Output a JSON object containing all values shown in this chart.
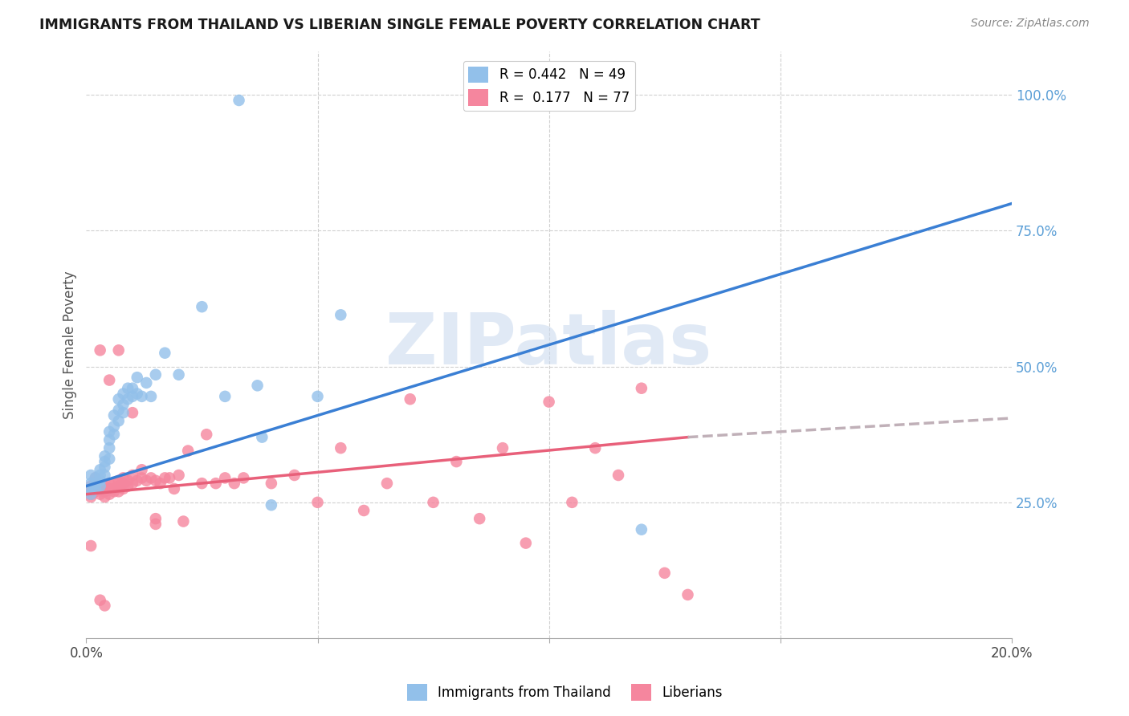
{
  "title": "IMMIGRANTS FROM THAILAND VS LIBERIAN SINGLE FEMALE POVERTY CORRELATION CHART",
  "source": "Source: ZipAtlas.com",
  "ylabel": "Single Female Poverty",
  "ytick_labels": [
    "25.0%",
    "50.0%",
    "75.0%",
    "100.0%"
  ],
  "ytick_positions": [
    0.25,
    0.5,
    0.75,
    1.0
  ],
  "xlim": [
    0.0,
    0.2
  ],
  "ylim": [
    0.0,
    1.08
  ],
  "legend_entry1": "R = 0.442   N = 49",
  "legend_entry2": "R =  0.177   N = 77",
  "color_thailand": "#92c0ea",
  "color_liberian": "#f5869e",
  "color_line_thailand": "#3a7fd4",
  "color_line_liberian": "#e8607a",
  "color_line_dashed": "#c0b0b8",
  "watermark_text": "ZIPatlas",
  "legend1_label": "R = 0.442   N = 49",
  "legend2_label": "R =  0.177   N = 77",
  "bottom_legend1": "Immigrants from Thailand",
  "bottom_legend2": "Liberians",
  "thailand_line_x0": 0.0,
  "thailand_line_y0": 0.28,
  "thailand_line_x1": 0.2,
  "thailand_line_y1": 0.8,
  "liberian_line_x0": 0.0,
  "liberian_line_y0": 0.265,
  "liberian_line_x1": 0.13,
  "liberian_line_y1": 0.37,
  "liberian_line_dash_x0": 0.13,
  "liberian_line_dash_y0": 0.37,
  "liberian_line_dash_x1": 0.2,
  "liberian_line_dash_y1": 0.405,
  "thailand_scatter_x": [
    0.001,
    0.001,
    0.001,
    0.001,
    0.002,
    0.002,
    0.002,
    0.003,
    0.003,
    0.003,
    0.003,
    0.004,
    0.004,
    0.004,
    0.004,
    0.005,
    0.005,
    0.005,
    0.005,
    0.006,
    0.006,
    0.006,
    0.007,
    0.007,
    0.007,
    0.008,
    0.008,
    0.008,
    0.009,
    0.009,
    0.01,
    0.01,
    0.011,
    0.011,
    0.012,
    0.013,
    0.014,
    0.015,
    0.017,
    0.02,
    0.025,
    0.03,
    0.037,
    0.038,
    0.04,
    0.05,
    0.055,
    0.12,
    0.033
  ],
  "thailand_scatter_y": [
    0.265,
    0.275,
    0.285,
    0.3,
    0.275,
    0.285,
    0.295,
    0.28,
    0.29,
    0.3,
    0.31,
    0.3,
    0.315,
    0.325,
    0.335,
    0.33,
    0.35,
    0.365,
    0.38,
    0.375,
    0.39,
    0.41,
    0.4,
    0.42,
    0.44,
    0.415,
    0.43,
    0.45,
    0.44,
    0.46,
    0.445,
    0.46,
    0.45,
    0.48,
    0.445,
    0.47,
    0.445,
    0.485,
    0.525,
    0.485,
    0.61,
    0.445,
    0.465,
    0.37,
    0.245,
    0.445,
    0.595,
    0.2,
    0.99
  ],
  "liberian_scatter_x": [
    0.001,
    0.001,
    0.001,
    0.001,
    0.001,
    0.002,
    0.002,
    0.002,
    0.002,
    0.003,
    0.003,
    0.003,
    0.003,
    0.004,
    0.004,
    0.004,
    0.004,
    0.005,
    0.005,
    0.005,
    0.006,
    0.006,
    0.006,
    0.007,
    0.007,
    0.007,
    0.008,
    0.008,
    0.008,
    0.009,
    0.009,
    0.01,
    0.01,
    0.011,
    0.012,
    0.012,
    0.013,
    0.014,
    0.015,
    0.015,
    0.016,
    0.017,
    0.018,
    0.019,
    0.02,
    0.021,
    0.022,
    0.025,
    0.026,
    0.028,
    0.03,
    0.032,
    0.034,
    0.04,
    0.045,
    0.05,
    0.055,
    0.06,
    0.065,
    0.07,
    0.075,
    0.08,
    0.085,
    0.09,
    0.095,
    0.1,
    0.105,
    0.11,
    0.115,
    0.12,
    0.125,
    0.13,
    0.003,
    0.005,
    0.007,
    0.01,
    0.015
  ],
  "liberian_scatter_y": [
    0.27,
    0.28,
    0.26,
    0.265,
    0.17,
    0.27,
    0.275,
    0.285,
    0.295,
    0.265,
    0.275,
    0.28,
    0.07,
    0.26,
    0.27,
    0.28,
    0.06,
    0.265,
    0.275,
    0.285,
    0.27,
    0.275,
    0.285,
    0.27,
    0.28,
    0.29,
    0.275,
    0.285,
    0.295,
    0.28,
    0.29,
    0.285,
    0.3,
    0.29,
    0.295,
    0.31,
    0.29,
    0.295,
    0.29,
    0.22,
    0.285,
    0.295,
    0.295,
    0.275,
    0.3,
    0.215,
    0.345,
    0.285,
    0.375,
    0.285,
    0.295,
    0.285,
    0.295,
    0.285,
    0.3,
    0.25,
    0.35,
    0.235,
    0.285,
    0.44,
    0.25,
    0.325,
    0.22,
    0.35,
    0.175,
    0.435,
    0.25,
    0.35,
    0.3,
    0.46,
    0.12,
    0.08,
    0.53,
    0.475,
    0.53,
    0.415,
    0.21
  ]
}
